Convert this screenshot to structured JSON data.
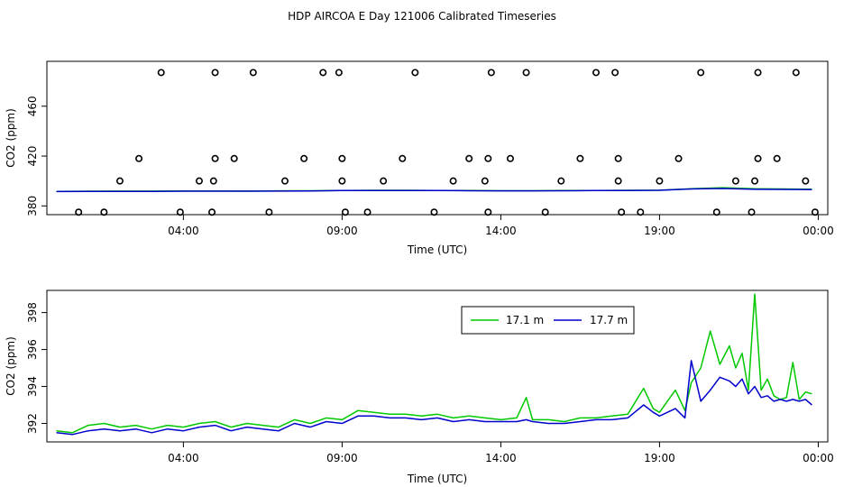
{
  "title": "HDP AIRCOA E  Day 121006  Calibrated Timeseries",
  "colors": {
    "series_1": "#00c800",
    "series_2": "#0000cc",
    "axis": "#000000",
    "background": "#ffffff"
  },
  "chart_data": [
    {
      "type": "scatter",
      "title": "",
      "xlabel": "Time (UTC)",
      "ylabel": "CO2 (ppm)",
      "x_unit": "hours UTC",
      "xlim": [
        -0.3,
        24.3
      ],
      "ylim": [
        373,
        496
      ],
      "x_ticks": [
        4,
        9,
        14,
        19,
        24
      ],
      "x_tick_labels": [
        "04:00",
        "09:00",
        "14:00",
        "19:00",
        "00:00"
      ],
      "y_ticks": [
        380,
        420,
        460
      ],
      "y_tick_labels": [
        "380",
        "420",
        "460"
      ],
      "grid": false,
      "legend": "none",
      "series": [
        {
          "marker": "open-circle",
          "points": [
            [
              1.5,
              375
            ],
            [
              2.0,
              400
            ],
            [
              2.6,
              418
            ],
            [
              3.3,
              487
            ],
            [
              3.9,
              375
            ],
            [
              4.5,
              400
            ],
            [
              4.9,
              375
            ],
            [
              4.95,
              400
            ],
            [
              5.0,
              418
            ],
            [
              5.0,
              487
            ],
            [
              5.6,
              418
            ],
            [
              6.2,
              487
            ],
            [
              6.7,
              375
            ],
            [
              7.2,
              400
            ],
            [
              7.8,
              418
            ],
            [
              8.4,
              487
            ],
            [
              8.9,
              487
            ],
            [
              9.0,
              418
            ],
            [
              9.0,
              400
            ],
            [
              9.1,
              375
            ],
            [
              9.8,
              375
            ],
            [
              10.3,
              400
            ],
            [
              10.9,
              418
            ],
            [
              11.3,
              487
            ],
            [
              11.9,
              375
            ],
            [
              12.5,
              400
            ],
            [
              13.0,
              418
            ],
            [
              13.5,
              400
            ],
            [
              13.6,
              375
            ],
            [
              13.6,
              418
            ],
            [
              13.7,
              487
            ],
            [
              14.3,
              418
            ],
            [
              14.8,
              487
            ],
            [
              15.4,
              375
            ],
            [
              15.9,
              400
            ],
            [
              16.5,
              418
            ],
            [
              17.0,
              487
            ],
            [
              17.6,
              487
            ],
            [
              17.7,
              418
            ],
            [
              17.7,
              400
            ],
            [
              17.8,
              375
            ],
            [
              18.4,
              375
            ],
            [
              19.0,
              400
            ],
            [
              19.6,
              418
            ],
            [
              20.3,
              487
            ],
            [
              20.8,
              375
            ],
            [
              21.4,
              400
            ],
            [
              21.9,
              375
            ],
            [
              22.0,
              400
            ],
            [
              22.1,
              418
            ],
            [
              22.1,
              487
            ],
            [
              22.7,
              418
            ],
            [
              23.3,
              487
            ],
            [
              23.6,
              400
            ],
            [
              23.9,
              375
            ],
            [
              0.7,
              375
            ]
          ]
        },
        {
          "name": "17.1 m",
          "marker": "line",
          "x": [
            0,
            1,
            2,
            3,
            4,
            5,
            6,
            7,
            8,
            9,
            10,
            11,
            12,
            13,
            14,
            15,
            16,
            17,
            18,
            19,
            20,
            21,
            22,
            23.8
          ],
          "y": [
            391.6,
            391.8,
            391.9,
            391.9,
            392.0,
            392.0,
            391.9,
            392.1,
            392.2,
            392.4,
            392.5,
            392.5,
            392.4,
            392.3,
            392.2,
            392.2,
            392.3,
            392.4,
            392.5,
            392.6,
            393.8,
            394.6,
            393.8,
            393.4
          ]
        },
        {
          "name": "17.7 m",
          "marker": "line",
          "x": [
            0,
            1,
            2,
            3,
            4,
            5,
            6,
            7,
            8,
            9,
            10,
            11,
            12,
            13,
            14,
            15,
            16,
            17,
            18,
            19,
            20,
            21,
            22,
            23.8
          ],
          "y": [
            391.5,
            391.6,
            391.7,
            391.7,
            391.8,
            391.8,
            391.8,
            391.9,
            392.0,
            392.3,
            392.4,
            392.4,
            392.3,
            392.2,
            392.1,
            392.1,
            392.2,
            392.3,
            392.4,
            392.5,
            393.6,
            394.0,
            393.3,
            393.1
          ]
        }
      ]
    },
    {
      "type": "line",
      "title": "",
      "xlabel": "Time (UTC)",
      "ylabel": "CO2 (ppm)",
      "x_unit": "hours UTC",
      "xlim": [
        -0.3,
        24.3
      ],
      "ylim": [
        391.0,
        399.2
      ],
      "x_ticks": [
        4,
        9,
        14,
        19,
        24
      ],
      "x_tick_labels": [
        "04:00",
        "09:00",
        "14:00",
        "19:00",
        "00:00"
      ],
      "y_ticks": [
        392,
        394,
        396,
        398
      ],
      "y_tick_labels": [
        "392",
        "394",
        "396",
        "398"
      ],
      "grid": false,
      "legend": "top-right",
      "series": [
        {
          "name": "17.1 m",
          "x": [
            0.0,
            0.5,
            1.0,
            1.5,
            2.0,
            2.5,
            3.0,
            3.5,
            4.0,
            4.5,
            5.0,
            5.5,
            6.0,
            6.5,
            7.0,
            7.5,
            8.0,
            8.5,
            9.0,
            9.5,
            10.0,
            10.5,
            11.0,
            11.5,
            12.0,
            12.5,
            13.0,
            13.5,
            14.0,
            14.5,
            14.8,
            15.0,
            15.5,
            16.0,
            16.5,
            17.0,
            17.5,
            18.0,
            18.5,
            18.8,
            19.0,
            19.5,
            19.8,
            20.0,
            20.3,
            20.6,
            20.9,
            21.2,
            21.4,
            21.6,
            21.8,
            22.0,
            22.2,
            22.4,
            22.6,
            22.8,
            23.0,
            23.2,
            23.4,
            23.6,
            23.8
          ],
          "y": [
            391.6,
            391.5,
            391.9,
            392.0,
            391.8,
            391.9,
            391.7,
            391.9,
            391.8,
            392.0,
            392.1,
            391.8,
            392.0,
            391.9,
            391.8,
            392.2,
            392.0,
            392.3,
            392.2,
            392.7,
            392.6,
            392.5,
            392.5,
            392.4,
            392.5,
            392.3,
            392.4,
            392.3,
            392.2,
            392.3,
            393.4,
            392.2,
            392.2,
            392.1,
            392.3,
            392.3,
            392.4,
            392.5,
            393.9,
            392.8,
            392.6,
            393.8,
            392.7,
            394.2,
            395.0,
            397.0,
            395.2,
            396.2,
            395.0,
            395.8,
            393.8,
            399.0,
            393.8,
            394.4,
            393.5,
            393.3,
            393.4,
            395.3,
            393.3,
            393.7,
            393.6
          ]
        },
        {
          "name": "17.7 m",
          "x": [
            0.0,
            0.5,
            1.0,
            1.5,
            2.0,
            2.5,
            3.0,
            3.5,
            4.0,
            4.5,
            5.0,
            5.5,
            6.0,
            6.5,
            7.0,
            7.5,
            8.0,
            8.5,
            9.0,
            9.5,
            10.0,
            10.5,
            11.0,
            11.5,
            12.0,
            12.5,
            13.0,
            13.5,
            14.0,
            14.5,
            14.8,
            15.0,
            15.5,
            16.0,
            16.5,
            17.0,
            17.5,
            18.0,
            18.5,
            18.8,
            19.0,
            19.5,
            19.8,
            20.0,
            20.3,
            20.6,
            20.9,
            21.2,
            21.4,
            21.6,
            21.8,
            22.0,
            22.2,
            22.4,
            22.6,
            22.8,
            23.0,
            23.2,
            23.4,
            23.6,
            23.8
          ],
          "y": [
            391.5,
            391.4,
            391.6,
            391.7,
            391.6,
            391.7,
            391.5,
            391.7,
            391.6,
            391.8,
            391.9,
            391.6,
            391.8,
            391.7,
            391.6,
            392.0,
            391.8,
            392.1,
            392.0,
            392.4,
            392.4,
            392.3,
            392.3,
            392.2,
            392.3,
            392.1,
            392.2,
            392.1,
            392.1,
            392.1,
            392.2,
            392.1,
            392.0,
            392.0,
            392.1,
            392.2,
            392.2,
            392.3,
            393.0,
            392.6,
            392.4,
            392.8,
            392.3,
            395.4,
            393.2,
            393.8,
            394.5,
            394.3,
            394.0,
            394.4,
            393.6,
            394.0,
            393.4,
            393.5,
            393.2,
            393.3,
            393.2,
            393.3,
            393.2,
            393.3,
            393.0
          ]
        }
      ]
    }
  ]
}
